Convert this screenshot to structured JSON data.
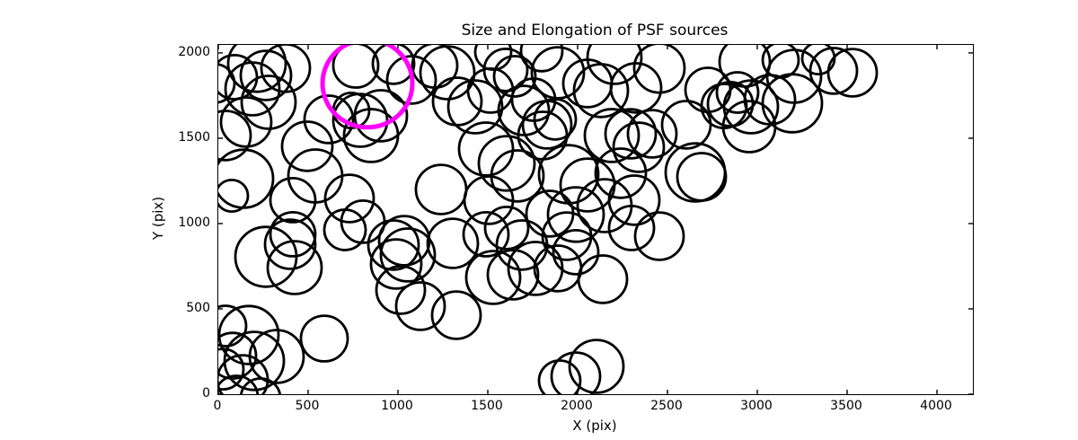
{
  "figure": {
    "title": "Size and Elongation of PSF sources",
    "xlabel": "X (pix)",
    "ylabel": "Y (pix)"
  },
  "chart_data": {
    "type": "scatter",
    "title": "Size and Elongation of PSF sources",
    "xlabel": "X (pix)",
    "ylabel": "Y (pix)",
    "xlim": [
      0,
      4200
    ],
    "ylim": [
      0,
      2047
    ],
    "x_ticks": [
      0,
      500,
      1000,
      1500,
      2000,
      2500,
      3000,
      3500,
      4000
    ],
    "y_ticks": [
      0,
      500,
      1000,
      1500,
      2000
    ],
    "grid": false,
    "legend": "none",
    "marker_style": "open-circle",
    "source_color": "#000000",
    "highlight_color": "#ff00ff",
    "point_format": "[x_pix, y_pix, radius_pix]",
    "sources": [
      [
        215,
        1937,
        160
      ],
      [
        90,
        1858,
        125
      ],
      [
        265,
        1868,
        140
      ],
      [
        190,
        1789,
        150
      ],
      [
        375,
        1911,
        135
      ],
      [
        280,
        1711,
        150
      ],
      [
        155,
        1595,
        140
      ],
      [
        -20,
        1821,
        110
      ],
      [
        40,
        1516,
        140
      ],
      [
        765,
        1926,
        125
      ],
      [
        975,
        1937,
        115
      ],
      [
        1075,
        1842,
        135
      ],
      [
        790,
        1605,
        150
      ],
      [
        905,
        1632,
        145
      ],
      [
        740,
        1663,
        100
      ],
      [
        850,
        1516,
        150
      ],
      [
        615,
        1611,
        135
      ],
      [
        495,
        1453,
        140
      ],
      [
        540,
        1279,
        150
      ],
      [
        730,
        1147,
        135
      ],
      [
        140,
        1263,
        165
      ],
      [
        75,
        1163,
        90
      ],
      [
        415,
        1137,
        125
      ],
      [
        415,
        937,
        125
      ],
      [
        265,
        805,
        170
      ],
      [
        400,
        879,
        140
      ],
      [
        425,
        742,
        150
      ],
      [
        170,
        347,
        165
      ],
      [
        40,
        400,
        115
      ],
      [
        80,
        226,
        130
      ],
      [
        200,
        195,
        165
      ],
      [
        25,
        147,
        115
      ],
      [
        135,
        84,
        140
      ],
      [
        325,
        221,
        150
      ],
      [
        100,
        -16,
        120
      ],
      [
        235,
        -21,
        110
      ],
      [
        590,
        326,
        130
      ],
      [
        705,
        963,
        115
      ],
      [
        805,
        1011,
        120
      ],
      [
        975,
        874,
        140
      ],
      [
        1035,
        900,
        140
      ],
      [
        1055,
        816,
        150
      ],
      [
        990,
        763,
        140
      ],
      [
        1015,
        611,
        135
      ],
      [
        1125,
        516,
        135
      ],
      [
        1305,
        884,
        140
      ],
      [
        1325,
        463,
        135
      ],
      [
        1240,
        1200,
        140
      ],
      [
        1275,
        1884,
        150
      ],
      [
        1205,
        1926,
        125
      ],
      [
        1330,
        1716,
        135
      ],
      [
        1430,
        1684,
        150
      ],
      [
        1490,
        1437,
        150
      ],
      [
        1605,
        1353,
        155
      ],
      [
        1665,
        1279,
        145
      ],
      [
        1505,
        1137,
        135
      ],
      [
        1515,
        1779,
        125
      ],
      [
        1530,
        2005,
        100
      ],
      [
        1600,
        1900,
        120
      ],
      [
        1650,
        1863,
        115
      ],
      [
        1800,
        2011,
        115
      ],
      [
        1890,
        1884,
        145
      ],
      [
        1830,
        1579,
        135
      ],
      [
        1700,
        1663,
        140
      ],
      [
        1805,
        1516,
        135
      ],
      [
        1845,
        1058,
        130
      ],
      [
        2205,
        1974,
        150
      ],
      [
        2455,
        1911,
        140
      ],
      [
        2325,
        1795,
        140
      ],
      [
        2130,
        1779,
        150
      ],
      [
        2055,
        1821,
        135
      ],
      [
        1950,
        1289,
        165
      ],
      [
        2055,
        1226,
        150
      ],
      [
        2190,
        1516,
        150
      ],
      [
        2295,
        1526,
        140
      ],
      [
        2340,
        1447,
        140
      ],
      [
        2415,
        1526,
        135
      ],
      [
        2240,
        1295,
        140
      ],
      [
        2315,
        1137,
        140
      ],
      [
        2150,
        1105,
        150
      ],
      [
        1990,
        1053,
        155
      ],
      [
        1875,
        1611,
        115
      ],
      [
        1755,
        1726,
        120
      ],
      [
        1900,
        79,
        115
      ],
      [
        1990,
        105,
        135
      ],
      [
        2105,
        163,
        150
      ],
      [
        1530,
        684,
        150
      ],
      [
        1640,
        700,
        140
      ],
      [
        1765,
        737,
        150
      ],
      [
        1490,
        937,
        125
      ],
      [
        1605,
        974,
        120
      ],
      [
        1690,
        874,
        140
      ],
      [
        1940,
        926,
        135
      ],
      [
        1990,
        832,
        125
      ],
      [
        1890,
        737,
        130
      ],
      [
        2140,
        674,
        135
      ],
      [
        2300,
        974,
        125
      ],
      [
        2455,
        926,
        135
      ],
      [
        2655,
        1300,
        165
      ],
      [
        2690,
        1274,
        135
      ],
      [
        2725,
        1784,
        125
      ],
      [
        2605,
        1579,
        135
      ],
      [
        2815,
        1689,
        125
      ],
      [
        2955,
        1568,
        145
      ],
      [
        2930,
        1947,
        140
      ],
      [
        3130,
        1958,
        100
      ],
      [
        3205,
        1863,
        150
      ],
      [
        3340,
        1968,
        90
      ],
      [
        3425,
        1895,
        130
      ],
      [
        3530,
        1884,
        135
      ],
      [
        3070,
        1726,
        140
      ],
      [
        3195,
        1705,
        165
      ],
      [
        2890,
        1768,
        115
      ],
      [
        2850,
        1700,
        125
      ],
      [
        2965,
        1684,
        150
      ]
    ],
    "highlight": {
      "x": 830,
      "y": 1821,
      "r": 250,
      "color": "#ff00ff"
    }
  }
}
